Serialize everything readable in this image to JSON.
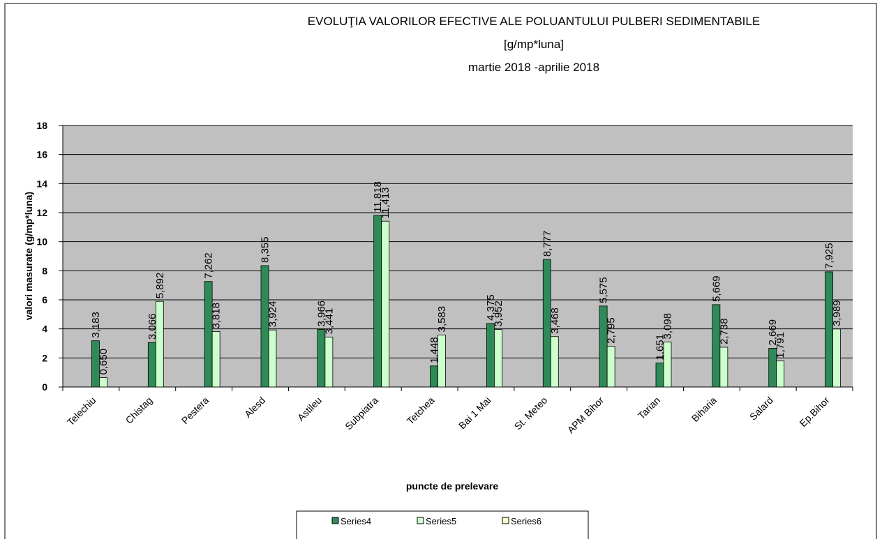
{
  "chart_data": {
    "type": "bar",
    "title": [
      "EVOLUŢIA VALORILOR  EFECTIVE ALE POLUANTULUI PULBERI SEDIMENTABILE",
      "[g/mp*luna]",
      "martie 2018 -aprilie  2018"
    ],
    "x_label": "puncte de prelevare",
    "y_label": "valori masurate (g/mp*luna)",
    "categories": [
      "Telechiu",
      "Chistag",
      "Pestera",
      "Alesd",
      "Astileu",
      "Subpiatra",
      "Tetchea",
      "Bai 1 Mai",
      "St. Meteo",
      "APM Bihor",
      "Tarian",
      "Biharia",
      "Salard",
      "Ep.Bihor"
    ],
    "series": [
      {
        "name": "Series4",
        "color": "#2e8b57",
        "values": [
          3.183,
          3.066,
          7.262,
          8.355,
          3.966,
          11.818,
          1.448,
          4.375,
          8.777,
          5.575,
          1.651,
          5.669,
          2.669,
          7.925
        ],
        "value_labels": [
          "3,183",
          "3,066",
          "7,262",
          "8,355",
          "3,966",
          "11,818",
          "1,448",
          "4,375",
          "8,777",
          "5,575",
          "1,651",
          "5,669",
          "2,669",
          "7,925"
        ]
      },
      {
        "name": "Series5",
        "color": "#ccffcc",
        "values": [
          0.65,
          5.892,
          3.818,
          3.924,
          3.441,
          11.413,
          3.583,
          3.952,
          3.468,
          2.795,
          3.098,
          2.738,
          1.791,
          3.989
        ],
        "value_labels": [
          "0,650",
          "5,892",
          "3,818",
          "3,924",
          "3,441",
          "11,413",
          "3,583",
          "3,952",
          "3,468",
          "2,795",
          "3,098",
          "2,738",
          "1,791",
          "3,989"
        ]
      },
      {
        "name": "Series6",
        "color": "#ffffcc",
        "values": [
          null,
          null,
          null,
          null,
          null,
          null,
          null,
          null,
          null,
          null,
          null,
          null,
          null,
          null
        ]
      }
    ],
    "ylim": [
      0,
      18
    ],
    "yticks": [
      0,
      2,
      4,
      6,
      8,
      10,
      12,
      14,
      16,
      18
    ],
    "grid": true,
    "plot_background": "#c0c0c0"
  }
}
